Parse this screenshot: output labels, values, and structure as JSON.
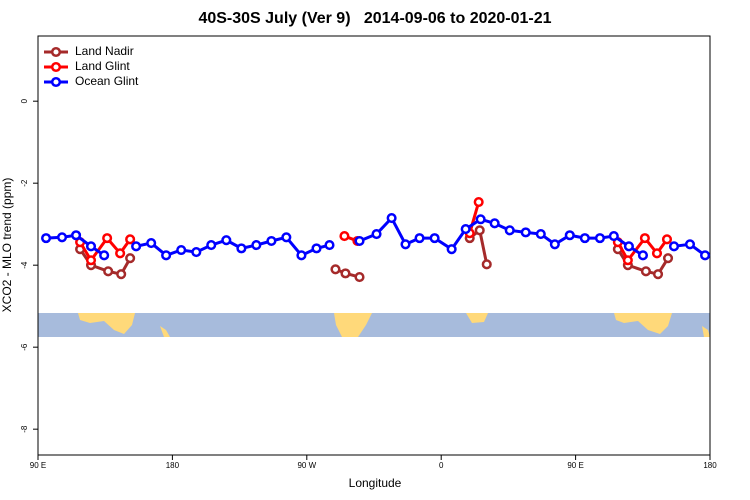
{
  "chart_data": {
    "type": "line",
    "title": "40S-30S July (Ver 9)   2014-09-06 to 2020-01-21",
    "x_label": "Longitude",
    "y_label": "XCO2 - MLO trend (ppm)",
    "xlim": [
      90,
      540
    ],
    "xticks": [
      {
        "value": 90,
        "label": "90 E"
      },
      180,
      {
        "value": 270,
        "label": "90 W"
      },
      {
        "value": 360,
        "label": "0"
      },
      {
        "value": 450,
        "label": "90 E"
      },
      {
        "value": 540,
        "label": "180"
      }
    ],
    "ylim": [
      -8.63,
      1.59
    ],
    "yticks": [
      0,
      -2,
      -4,
      -6,
      -8
    ],
    "grid": false,
    "legend": "top-left",
    "series": [
      {
        "name": "Land Nadir",
        "color": "#a52a2a",
        "x": [
          118.2,
          125.5,
          137.0,
          145.7,
          151.7,
          null,
          289.2,
          295.9,
          305.3,
          null,
          379.1,
          385.8,
          390.5,
          null,
          478.3,
          485.0,
          497.1,
          505.2,
          511.9
        ],
        "values": [
          -3.61,
          -4.0,
          -4.15,
          -4.22,
          -3.83,
          null,
          -4.1,
          -4.2,
          -4.29,
          null,
          -3.34,
          -3.15,
          -3.98,
          null,
          -3.61,
          -4.0,
          -4.15,
          -4.22,
          -3.83
        ]
      },
      {
        "name": "Land Glint",
        "color": "#ff0000",
        "x": [
          118.2,
          125.5,
          136.3,
          145.0,
          151.7,
          null,
          295.2,
          303.9,
          null,
          379.1,
          385.1,
          null,
          478.3,
          485.0,
          496.4,
          504.5,
          511.2
        ],
        "values": [
          -3.44,
          -3.88,
          -3.34,
          -3.71,
          -3.37,
          null,
          -3.29,
          -3.41,
          null,
          -3.22,
          -2.46,
          null,
          -3.44,
          -3.88,
          -3.34,
          -3.71,
          -3.37
        ]
      },
      {
        "name": "Ocean Glint",
        "color": "#0000ff",
        "x": [
          95.4,
          106.1,
          115.5,
          125.5,
          134.3,
          null,
          155.7,
          165.8,
          175.8,
          185.9,
          196.0,
          206.0,
          216.1,
          226.2,
          236.2,
          246.3,
          256.3,
          266.4,
          276.5,
          285.2,
          null,
          305.3,
          316.7,
          326.8,
          336.1,
          345.5,
          355.6,
          367.0,
          376.4,
          386.4,
          395.8,
          405.9,
          416.6,
          426.7,
          436.1,
          446.1,
          456.2,
          466.3,
          475.6,
          485.7,
          495.1,
          null,
          515.9,
          526.6,
          536.7
        ],
        "values": [
          -3.34,
          -3.32,
          -3.27,
          -3.54,
          -3.76,
          null,
          -3.54,
          -3.46,
          -3.76,
          -3.63,
          -3.68,
          -3.51,
          -3.39,
          -3.59,
          -3.51,
          -3.41,
          -3.32,
          -3.76,
          -3.59,
          -3.51,
          null,
          -3.41,
          -3.24,
          -2.85,
          -3.49,
          -3.34,
          -3.34,
          -3.61,
          -3.12,
          -2.88,
          -2.98,
          -3.15,
          -3.2,
          -3.24,
          -3.49,
          -3.27,
          -3.34,
          -3.34,
          -3.29,
          -3.54,
          -3.76,
          null,
          -3.54,
          -3.49,
          -3.76
        ]
      }
    ]
  }
}
